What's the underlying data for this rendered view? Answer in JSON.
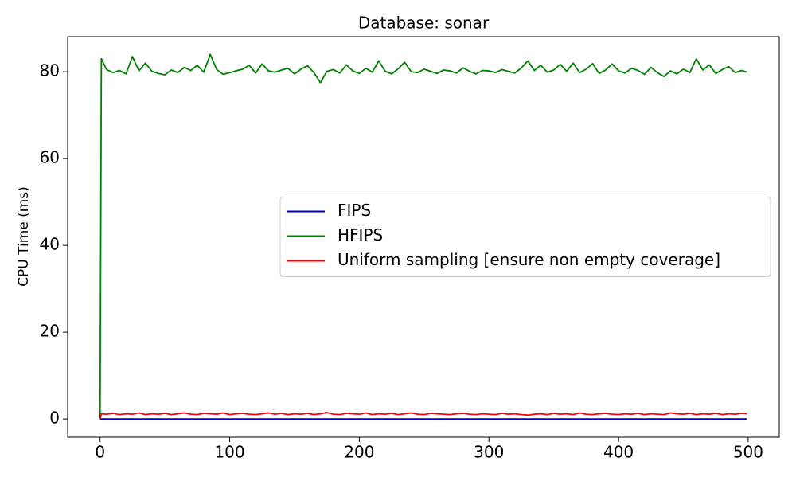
{
  "chart_data": {
    "type": "line",
    "title": "Database: sonar",
    "y_label": "CPU Time (ms)",
    "x": [
      0,
      1,
      5,
      10,
      15,
      20,
      25,
      30,
      35,
      40,
      45,
      50,
      55,
      60,
      65,
      70,
      75,
      80,
      85,
      90,
      95,
      100,
      105,
      110,
      115,
      120,
      125,
      130,
      135,
      140,
      145,
      150,
      155,
      160,
      165,
      170,
      175,
      180,
      185,
      190,
      195,
      200,
      205,
      210,
      215,
      220,
      225,
      230,
      235,
      240,
      245,
      250,
      255,
      260,
      265,
      270,
      275,
      280,
      285,
      290,
      295,
      300,
      305,
      310,
      315,
      320,
      325,
      330,
      335,
      340,
      345,
      350,
      355,
      360,
      365,
      370,
      375,
      380,
      385,
      390,
      395,
      400,
      405,
      410,
      415,
      420,
      425,
      430,
      435,
      440,
      445,
      450,
      455,
      460,
      465,
      470,
      475,
      480,
      485,
      490,
      495,
      499
    ],
    "series": [
      {
        "name": "FIPS",
        "color": "#0000cc",
        "values": [
          0,
          0,
          0,
          0,
          0,
          0,
          0,
          0,
          0,
          0,
          0,
          0,
          0,
          0,
          0,
          0,
          0,
          0,
          0,
          0,
          0,
          0,
          0,
          0,
          0,
          0,
          0,
          0,
          0,
          0,
          0,
          0,
          0,
          0,
          0,
          0,
          0,
          0,
          0,
          0,
          0,
          0,
          0,
          0,
          0,
          0,
          0,
          0,
          0,
          0,
          0,
          0,
          0,
          0,
          0,
          0,
          0,
          0,
          0,
          0,
          0,
          0,
          0,
          0,
          0,
          0,
          0,
          0,
          0,
          0,
          0,
          0,
          0,
          0,
          0,
          0,
          0,
          0,
          0,
          0,
          0,
          0,
          0,
          0,
          0,
          0,
          0,
          0,
          0,
          0,
          0,
          0,
          0,
          0,
          0,
          0,
          0,
          0,
          0,
          0,
          0,
          0
        ]
      },
      {
        "name": "HFIPS",
        "color": "#008000",
        "values": [
          0,
          83,
          80.5,
          79.8,
          80.3,
          79.5,
          83.5,
          80.2,
          82,
          80.1,
          79.6,
          79.3,
          80.4,
          79.8,
          81,
          80.3,
          81.5,
          79.9,
          84,
          80.5,
          79.4,
          79.8,
          80.2,
          80.6,
          81.5,
          79.7,
          81.8,
          80.2,
          79.9,
          80.4,
          80.8,
          79.5,
          80.6,
          81.4,
          79.8,
          77.5,
          80.1,
          80.5,
          79.7,
          81.6,
          80.2,
          79.6,
          80.8,
          79.9,
          82.5,
          80.1,
          79.5,
          80.7,
          82.2,
          80,
          79.8,
          80.6,
          80.1,
          79.6,
          80.4,
          80.2,
          79.7,
          80.9,
          80.1,
          79.5,
          80.3,
          80.2,
          79.8,
          80.5,
          80.1,
          79.7,
          80.9,
          82.5,
          80.3,
          81.5,
          79.9,
          80.4,
          81.7,
          80.1,
          82,
          79.8,
          80.6,
          81.9,
          79.6,
          80.4,
          81.8,
          80.2,
          79.7,
          80.8,
          80.3,
          79.4,
          81,
          79.8,
          78.9,
          80.2,
          79.5,
          80.6,
          79.8,
          83,
          80.4,
          81.6,
          79.6,
          80.5,
          81.2,
          79.8,
          80.3,
          79.9
        ]
      },
      {
        "name": "Uniform sampling [ensure non empty coverage]",
        "color": "#ff0000",
        "values": [
          0,
          1.2,
          1.1,
          1.3,
          1.0,
          1.2,
          1.1,
          1.4,
          1.0,
          1.2,
          1.1,
          1.3,
          1.0,
          1.2,
          1.4,
          1.1,
          1.0,
          1.3,
          1.2,
          1.1,
          1.4,
          1.0,
          1.2,
          1.3,
          1.1,
          1.0,
          1.2,
          1.4,
          1.1,
          1.3,
          1.0,
          1.2,
          1.1,
          1.3,
          1.0,
          1.2,
          1.5,
          1.1,
          1.0,
          1.3,
          1.2,
          1.1,
          1.4,
          1.0,
          1.2,
          1.1,
          1.3,
          1.0,
          1.2,
          1.4,
          1.1,
          1.0,
          1.3,
          1.2,
          1.1,
          1.0,
          1.2,
          1.3,
          1.1,
          1.0,
          1.2,
          1.1,
          1.0,
          1.3,
          1.1,
          1.2,
          1.0,
          0.9,
          1.1,
          1.2,
          1.0,
          1.3,
          1.1,
          1.2,
          1.0,
          1.4,
          1.1,
          1.0,
          1.2,
          1.3,
          1.1,
          1.0,
          1.2,
          1.1,
          1.3,
          1.0,
          1.2,
          1.1,
          1.0,
          1.4,
          1.2,
          1.1,
          1.3,
          1.0,
          1.2,
          1.1,
          1.3,
          1.0,
          1.2,
          1.1,
          1.3,
          1.2
        ]
      }
    ],
    "xlim": [
      -25,
      524
    ],
    "ylim": [
      -4.2,
      88.1
    ],
    "xticks": [
      0,
      100,
      200,
      300,
      400,
      500
    ],
    "yticks": [
      0,
      20,
      40,
      60,
      80
    ],
    "legend_position": "center right"
  }
}
